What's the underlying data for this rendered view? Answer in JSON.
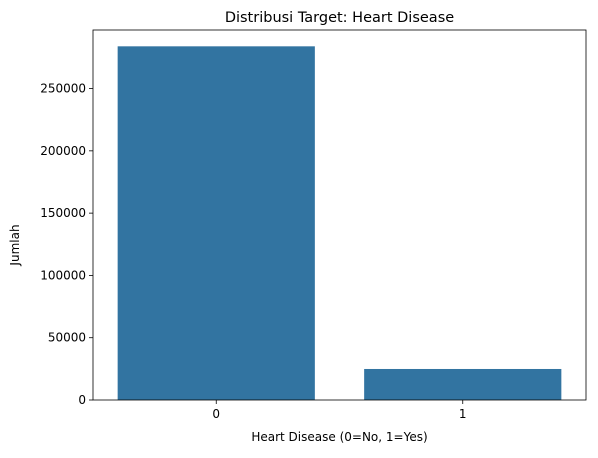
{
  "chart_data": {
    "type": "bar",
    "title": "Distribusi Target: Heart Disease",
    "xlabel": "Heart Disease (0=No, 1=Yes)",
    "ylabel": "Jumlah",
    "categories": [
      "0",
      "1"
    ],
    "values": [
      283900,
      24900
    ],
    "ylim": [
      0,
      297000
    ],
    "yticks": [
      0,
      50000,
      100000,
      150000,
      200000,
      250000
    ],
    "ytick_labels": [
      "0",
      "50000",
      "100000",
      "150000",
      "200000",
      "250000"
    ],
    "grid": false,
    "bar_color": "#3274a1"
  }
}
